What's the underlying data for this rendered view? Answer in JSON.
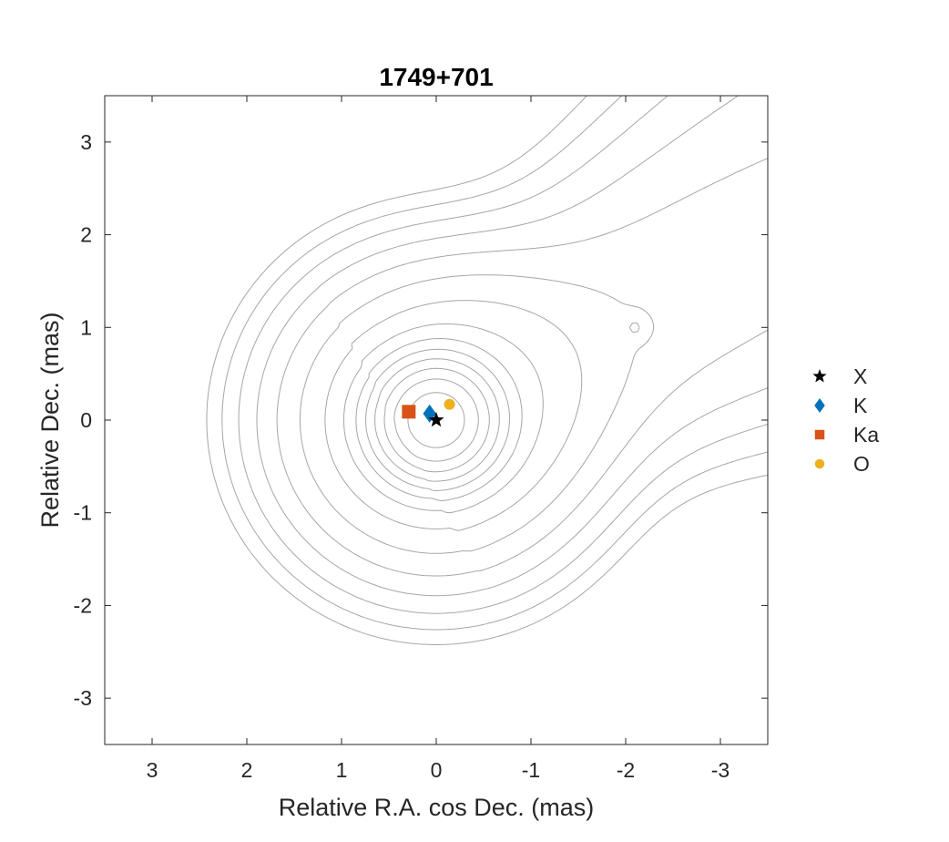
{
  "chart_data": {
    "type": "scatter",
    "title": "1749+701",
    "xlabel": "Relative R.A. cos Dec. (mas)",
    "ylabel": "Relative Dec. (mas)",
    "xlim": [
      3.5,
      -3.5
    ],
    "ylim": [
      -3.5,
      3.5
    ],
    "x_reversed": true,
    "xticks": [
      3,
      2,
      1,
      0,
      -1,
      -2,
      -3
    ],
    "xtick_labels": [
      "3",
      "2",
      "1",
      "0",
      "-1",
      "-2",
      "-3"
    ],
    "yticks": [
      3,
      2,
      1,
      0,
      -1,
      -2,
      -3
    ],
    "ytick_labels": [
      "3",
      "2",
      "1",
      "0",
      "-1",
      "-2",
      "-3"
    ],
    "grid": false,
    "background": "contour map (gray)",
    "legend_position": "outside-right",
    "series": [
      {
        "name": "X",
        "marker": "star",
        "color": "#000000",
        "x": [
          0.0
        ],
        "y": [
          0.0
        ]
      },
      {
        "name": "K",
        "marker": "diamond",
        "color": "#0072BD",
        "x": [
          0.07
        ],
        "y": [
          0.07
        ]
      },
      {
        "name": "Ka",
        "marker": "square",
        "color": "#D95319",
        "x": [
          0.29
        ],
        "y": [
          0.09
        ]
      },
      {
        "name": "O",
        "marker": "circle",
        "color": "#EDB120",
        "x": [
          -0.14
        ],
        "y": [
          0.17
        ]
      }
    ]
  }
}
